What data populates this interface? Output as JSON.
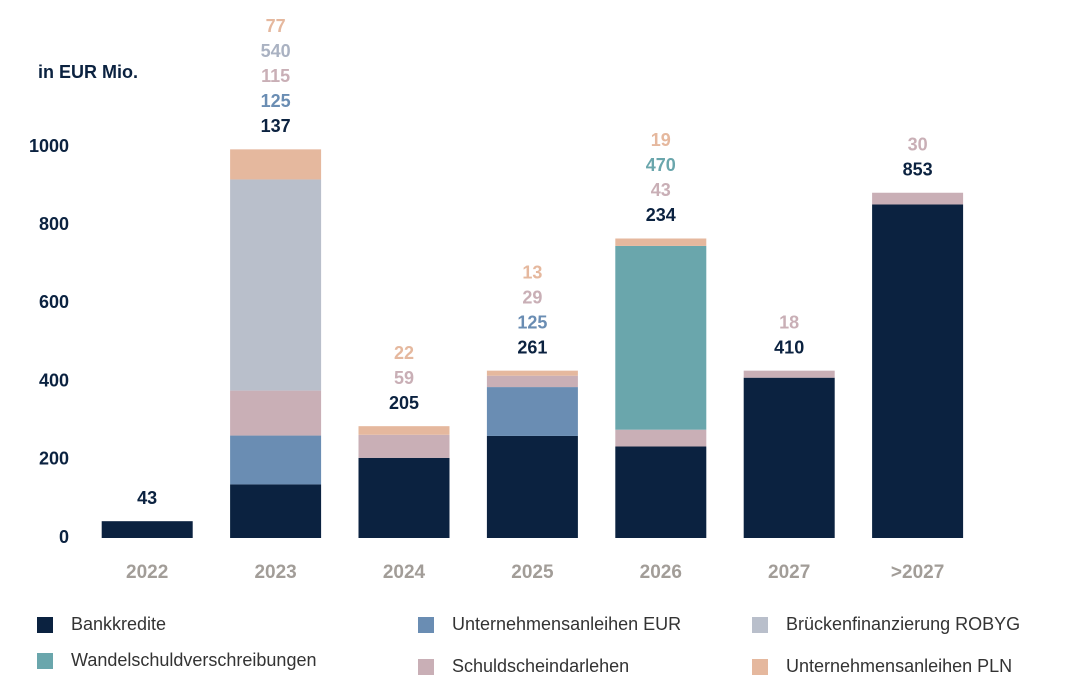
{
  "chart_data": {
    "type": "stacked_bar",
    "ylabel": "in EUR Mio.",
    "categories": [
      "2022",
      "2023",
      "2024",
      "2025",
      "2026",
      "2027",
      ">2027"
    ],
    "series": [
      {
        "name": "Bankkredite",
        "color": "#0b2240",
        "values": [
          43,
          137,
          205,
          261,
          234,
          410,
          853
        ]
      },
      {
        "name": "Unternehmensanleihen EUR",
        "color": "#6a8db3",
        "values": [
          null,
          125,
          null,
          125,
          null,
          null,
          null
        ]
      },
      {
        "name": "Schuldscheindarlehen",
        "color": "#c9afb6",
        "values": [
          null,
          115,
          59,
          29,
          43,
          18,
          30
        ]
      },
      {
        "name": "Brückenfinanzierung ROBYG",
        "color": "#b9bfcb",
        "values": [
          null,
          540,
          null,
          null,
          null,
          null,
          null
        ]
      },
      {
        "name": "Wandelschuldverschreibungen",
        "color": "#6aa6ac",
        "values": [
          null,
          null,
          null,
          null,
          470,
          null,
          null
        ]
      },
      {
        "name": "Unternehmensanleihen PLN",
        "color": "#e5b89e",
        "values": [
          null,
          77,
          22,
          13,
          19,
          null,
          null
        ]
      }
    ],
    "ylim": [
      0,
      1000
    ],
    "yticks": [
      0,
      200,
      400,
      600,
      800,
      1000
    ]
  }
}
